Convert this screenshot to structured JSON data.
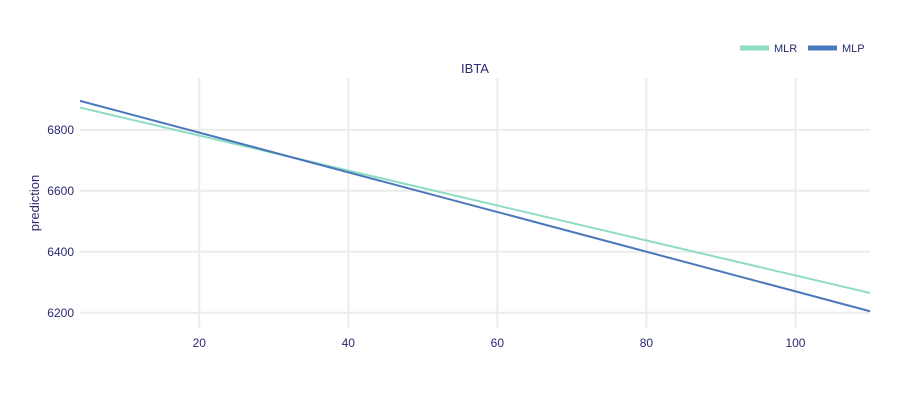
{
  "chart_data": {
    "type": "line",
    "title": "IBTA",
    "xlabel": "",
    "ylabel": "prediction",
    "xlim": [
      4,
      110
    ],
    "ylim": [
      6150,
      6970
    ],
    "x_ticks": [
      20,
      40,
      60,
      80,
      100
    ],
    "y_ticks": [
      6200,
      6400,
      6600,
      6800
    ],
    "grid": true,
    "legend_position": "top-right",
    "series": [
      {
        "name": "MLR",
        "color": "#8fdcc4",
        "x": [
          4,
          110
        ],
        "y": [
          6873,
          6265
        ]
      },
      {
        "name": "MLP",
        "color": "#4a78bc",
        "x": [
          4,
          110
        ],
        "y": [
          6895,
          6205
        ]
      }
    ]
  }
}
